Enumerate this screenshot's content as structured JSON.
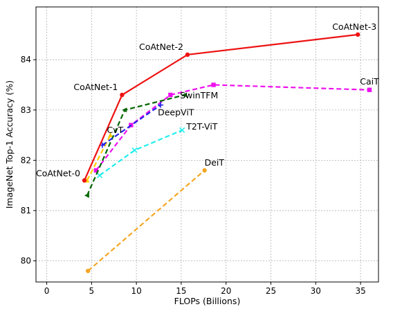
{
  "chart_data": {
    "type": "line",
    "xlabel": "FLOPs (Billions)",
    "ylabel": "ImageNet Top-1 Accuracy (%)",
    "xlim": [
      -1.2,
      37.0
    ],
    "ylim": [
      79.58,
      85.05
    ],
    "x_ticks": [
      0,
      5,
      10,
      15,
      20,
      25,
      30,
      35
    ],
    "y_ticks": [
      80,
      81,
      82,
      83,
      84
    ],
    "grid": true,
    "legend": "none",
    "series": [
      {
        "name": "CoAtNet",
        "color": "#ee1111",
        "dash": "solid",
        "marker": "circle",
        "points": [
          [
            4.2,
            81.6
          ],
          [
            8.4,
            83.3
          ],
          [
            15.7,
            84.1
          ],
          [
            34.7,
            84.5
          ]
        ],
        "point_labels": [
          "CoAtNet-0",
          "CoAtNet-1",
          "CoAtNet-2",
          "CoAtNet-3"
        ]
      },
      {
        "name": "CaiT",
        "color": "#ee11ee",
        "dash": "dashed",
        "marker": "square",
        "points": [
          [
            5.5,
            81.8
          ],
          [
            9.4,
            82.7
          ],
          [
            13.8,
            83.3
          ],
          [
            18.6,
            83.5
          ],
          [
            36.0,
            83.4
          ]
        ],
        "label": "CaiT"
      },
      {
        "name": "SwinTFM",
        "color": "#006600",
        "dash": "dashed",
        "marker": "triangle-left",
        "points": [
          [
            4.5,
            81.3
          ],
          [
            8.7,
            83.0
          ],
          [
            15.4,
            83.3
          ]
        ],
        "label": "SwinTFM"
      },
      {
        "name": "DeepViT",
        "color": "#2222ee",
        "dash": "dashed",
        "marker": "plus",
        "points": [
          [
            6.2,
            82.3
          ],
          [
            12.7,
            83.1
          ]
        ],
        "label": "DeepViT"
      },
      {
        "name": "CvT",
        "color": "#ffcc00",
        "dash": "dashed",
        "marker": "triangle-up",
        "points": [
          [
            4.5,
            81.6
          ],
          [
            7.1,
            82.5
          ]
        ],
        "label": "CvT"
      },
      {
        "name": "T2T-ViT",
        "color": "#22eeee",
        "dash": "dashed",
        "marker": "x",
        "points": [
          [
            5.9,
            81.7
          ],
          [
            9.8,
            82.2
          ],
          [
            15.1,
            82.6
          ]
        ],
        "label": "T2T-ViT"
      },
      {
        "name": "DeiT",
        "color": "#f5a623",
        "dash": "dashed",
        "marker": "circle",
        "points": [
          [
            4.6,
            79.8
          ],
          [
            17.6,
            81.8
          ]
        ],
        "label": "DeiT"
      }
    ]
  }
}
